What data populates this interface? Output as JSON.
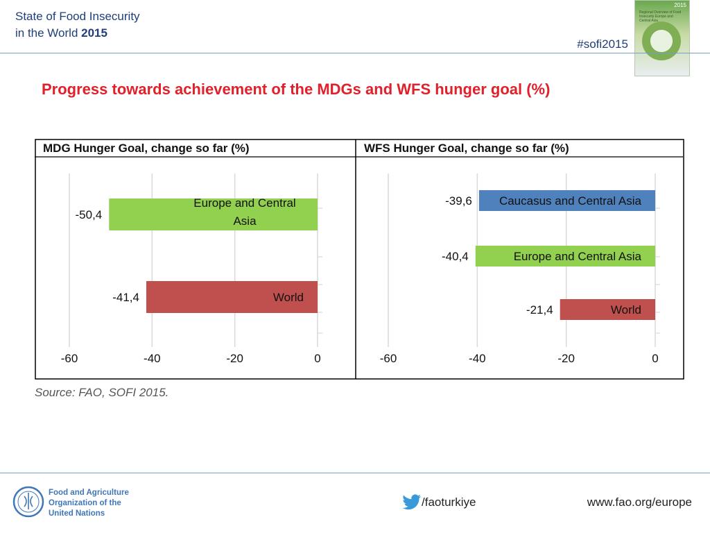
{
  "header": {
    "title_line1": "State of Food Insecurity",
    "title_line2": "in the World",
    "title_year": "2015",
    "hashtag": "#sofi2015"
  },
  "cover": {
    "year": "2015",
    "text": "Regional Overview of Food Insecurity Europe and Central Asia"
  },
  "slide_title": "Progress towards achievement of the MDGs and WFS hunger goal (%)",
  "source": "Source: FAO, SOFI 2015.",
  "footer": {
    "org_line1": "Food and Agriculture",
    "org_line2": "Organization of the",
    "org_line3": "United Nations",
    "twitter": "/faoturkiye",
    "website": "www.fao.org/europe"
  },
  "colors": {
    "green": "#92d050",
    "blue": "#4f81bd",
    "red": "#c0504d",
    "title_red": "#e0202a",
    "header_blue": "#1f3e7a"
  },
  "chart_data": [
    {
      "type": "bar",
      "orientation": "horizontal",
      "title": "MDG Hunger Goal, change so far (%)",
      "xlim": [
        -60,
        0
      ],
      "xticks": [
        "-60",
        "-40",
        "-20",
        "0"
      ],
      "bars": [
        {
          "category": [
            "Europe and Central",
            "Asia"
          ],
          "value": -50.4,
          "label": "-50,4",
          "color": "#92d050"
        },
        {
          "category": [
            "World"
          ],
          "value": -41.4,
          "label": "-41,4",
          "color": "#c0504d"
        }
      ]
    },
    {
      "type": "bar",
      "orientation": "horizontal",
      "title": "WFS Hunger Goal, change so far (%)",
      "xlim": [
        -60,
        0
      ],
      "xticks": [
        "-60",
        "-40",
        "-20",
        "0"
      ],
      "bars": [
        {
          "category": [
            "Caucasus and Central Asia"
          ],
          "value": -39.6,
          "label": "-39,6",
          "color": "#4f81bd"
        },
        {
          "category": [
            "Europe and Central Asia"
          ],
          "value": -40.4,
          "label": "-40,4",
          "color": "#92d050"
        },
        {
          "category": [
            "World"
          ],
          "value": -21.4,
          "label": "-21,4",
          "color": "#c0504d"
        }
      ]
    }
  ]
}
